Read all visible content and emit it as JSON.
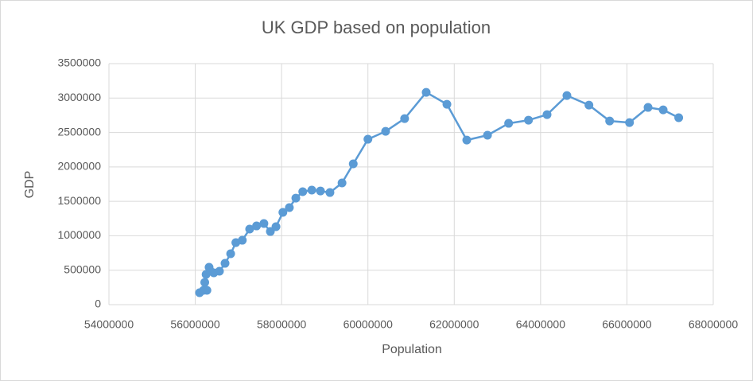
{
  "chart_data": {
    "type": "scatter-line",
    "title": "UK GDP based on population",
    "x_label": "Population",
    "y_label": "GDP",
    "x": [
      56100000,
      56190000,
      56220000,
      56270000,
      56250000,
      56320000,
      56340000,
      56430000,
      56560000,
      56690000,
      56820000,
      56940000,
      57090000,
      57260000,
      57420000,
      57590000,
      57740000,
      57870000,
      58030000,
      58180000,
      58330000,
      58490000,
      58700000,
      58900000,
      59120000,
      59400000,
      59660000,
      60000000,
      60410000,
      60850000,
      61350000,
      61830000,
      62290000,
      62770000,
      63260000,
      63720000,
      64150000,
      64610000,
      65120000,
      65600000,
      66060000,
      66490000,
      66840000,
      67200000
    ],
    "values": [
      173000,
      208000,
      323000,
      208000,
      439000,
      543000,
      497000,
      462000,
      485000,
      600000,
      739000,
      901000,
      935000,
      1097000,
      1143000,
      1178000,
      1062000,
      1132000,
      1340000,
      1409000,
      1547000,
      1640000,
      1663000,
      1651000,
      1628000,
      1767000,
      2044000,
      2402000,
      2517000,
      2702000,
      3083000,
      2910000,
      2390000,
      2460000,
      2633000,
      2679000,
      2760000,
      3037000,
      2898000,
      2667000,
      2644000,
      2864000,
      2829000,
      2714000
    ],
    "color": "#5b9bd5",
    "xlim": [
      54000000,
      68000000
    ],
    "xticks": [
      54000000,
      56000000,
      58000000,
      60000000,
      62000000,
      64000000,
      66000000,
      68000000
    ],
    "ylim": [
      0,
      3500000
    ],
    "yticks": [
      0,
      500000,
      1000000,
      1500000,
      2000000,
      2500000,
      3000000,
      3500000
    ],
    "grid": true
  }
}
